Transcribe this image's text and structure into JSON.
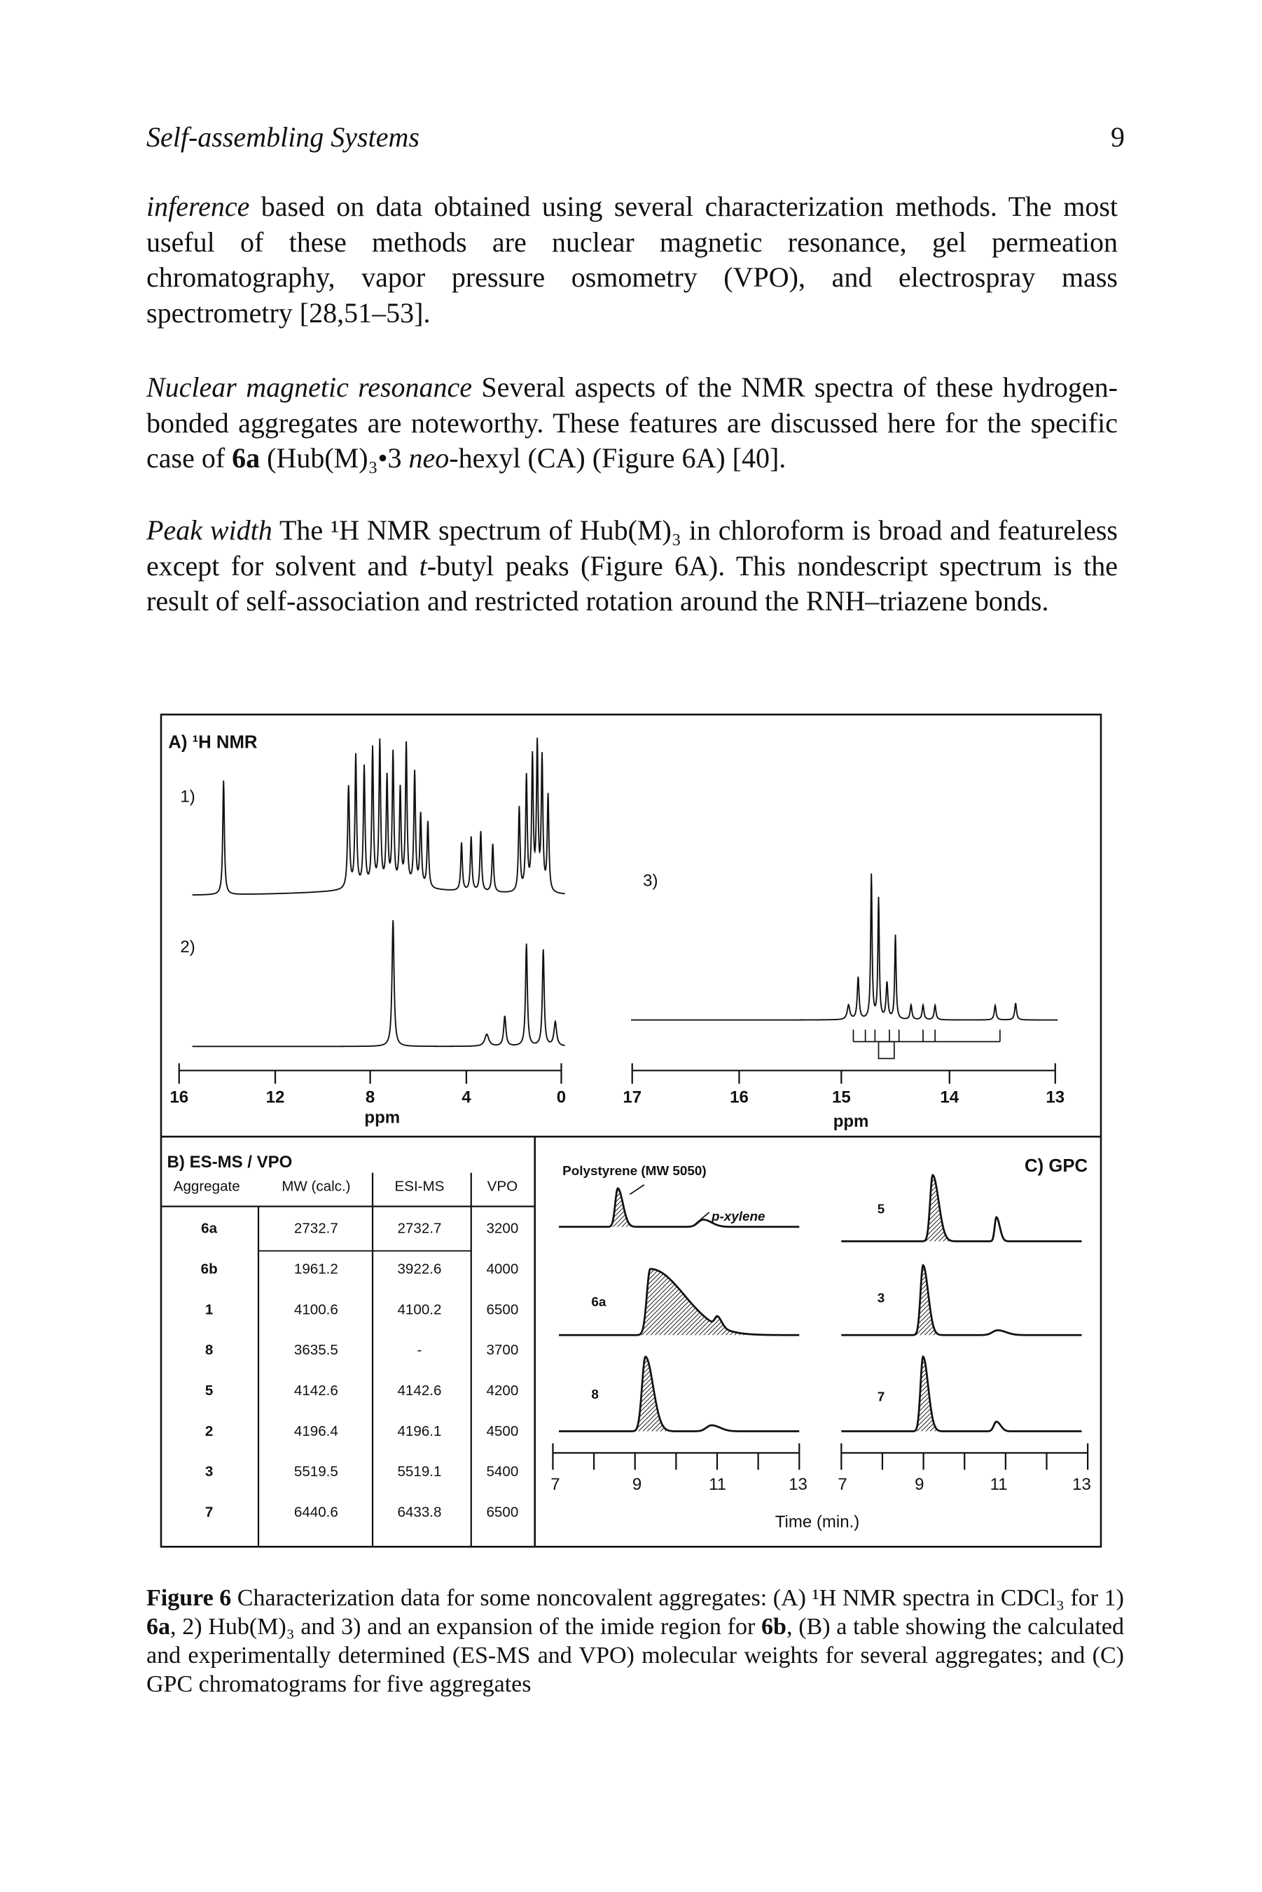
{
  "header": {
    "running_title": "Self-assembling Systems",
    "page_number": "9"
  },
  "paragraphs": [
    {
      "segments": [
        {
          "text": "inference",
          "italic": true
        },
        {
          "text": " based on data obtained using several characterization methods. The most useful of these methods are nuclear magnetic resonance, gel permeation chromatography, vapor pressure osmometry (VPO), and electrospray mass spectrometry [28,51–53]."
        }
      ]
    },
    {
      "segments": [
        {
          "text": "Nuclear magnetic resonance",
          "italic": true
        },
        {
          "text": "   Several aspects of the NMR spectra of these hydrogen-bonded aggregates are noteworthy. These features are discussed here for the specific case of "
        },
        {
          "text": "6a",
          "bold": true
        },
        {
          "text": " (Hub(M)₃•3 "
        },
        {
          "text": "neo",
          "italic": true
        },
        {
          "text": "-hexyl (CA) (Figure 6A) [40]."
        }
      ]
    },
    {
      "segments": [
        {
          "text": "Peak width",
          "italic": true
        },
        {
          "text": "   The ¹H NMR spectrum of Hub(M)₃ in chloroform is broad and featureless except for solvent and "
        },
        {
          "text": "t",
          "italic": true
        },
        {
          "text": "-butyl peaks (Figure 6A). This nondescript spectrum is the result of self-association and restricted rotation around the RNH–triazene bonds."
        }
      ]
    }
  ],
  "figure": {
    "panel_a": {
      "title": "A) ¹H NMR",
      "spectrum_labels": [
        "1)",
        "2)",
        "3)"
      ],
      "axis_left": {
        "ticks": [
          "16",
          "12",
          "8",
          "4",
          "0"
        ],
        "label": "ppm"
      },
      "axis_right": {
        "ticks": [
          "17",
          "16",
          "15",
          "14",
          "13"
        ],
        "label": "ppm"
      }
    },
    "panel_b": {
      "title": "B) ES-MS / VPO",
      "columns": [
        "Aggregate",
        "MW (calc.)",
        "ESI-MS",
        "VPO"
      ],
      "rows": [
        [
          "6a",
          "2732.7",
          "2732.7",
          "3200"
        ],
        [
          "6b",
          "1961.2",
          "3922.6",
          "4000"
        ],
        [
          "1",
          "4100.6",
          "4100.2",
          "6500"
        ],
        [
          "8",
          "3635.5",
          "-",
          "3700"
        ],
        [
          "5",
          "4142.6",
          "4142.6",
          "4200"
        ],
        [
          "2",
          "4196.4",
          "4196.1",
          "4500"
        ],
        [
          "3",
          "5519.5",
          "5519.1",
          "5400"
        ],
        [
          "7",
          "6440.6",
          "6433.8",
          "6500"
        ]
      ]
    },
    "panel_c": {
      "title": "C) GPC",
      "standard_label": "Polystyrene (MW 5050)",
      "solvent_label": "p-xylene",
      "trace_labels": [
        "6a",
        "8",
        "5",
        "3",
        "7"
      ],
      "axis_left": {
        "ticks": [
          "7",
          "9",
          "11",
          "13"
        ]
      },
      "axis_right": {
        "ticks": [
          "7",
          "9",
          "11",
          "13"
        ]
      },
      "axis_label": "Time (min.)"
    }
  },
  "caption": {
    "segments": [
      {
        "text": "Figure 6",
        "bold": true
      },
      {
        "text": "   Characterization data for some noncovalent aggregates: (A) ¹H NMR spectra in CDCl₃ for 1) "
      },
      {
        "text": "6a",
        "bold": true
      },
      {
        "text": ", 2) Hub(M)₃ and 3) and an expansion of the imide region for "
      },
      {
        "text": "6b",
        "bold": true
      },
      {
        "text": ", (B) a table showing the calculated and experimentally determined (ES-MS and VPO) molecular weights for several aggregates; and (C) GPC chromatograms for five aggregates"
      }
    ]
  }
}
